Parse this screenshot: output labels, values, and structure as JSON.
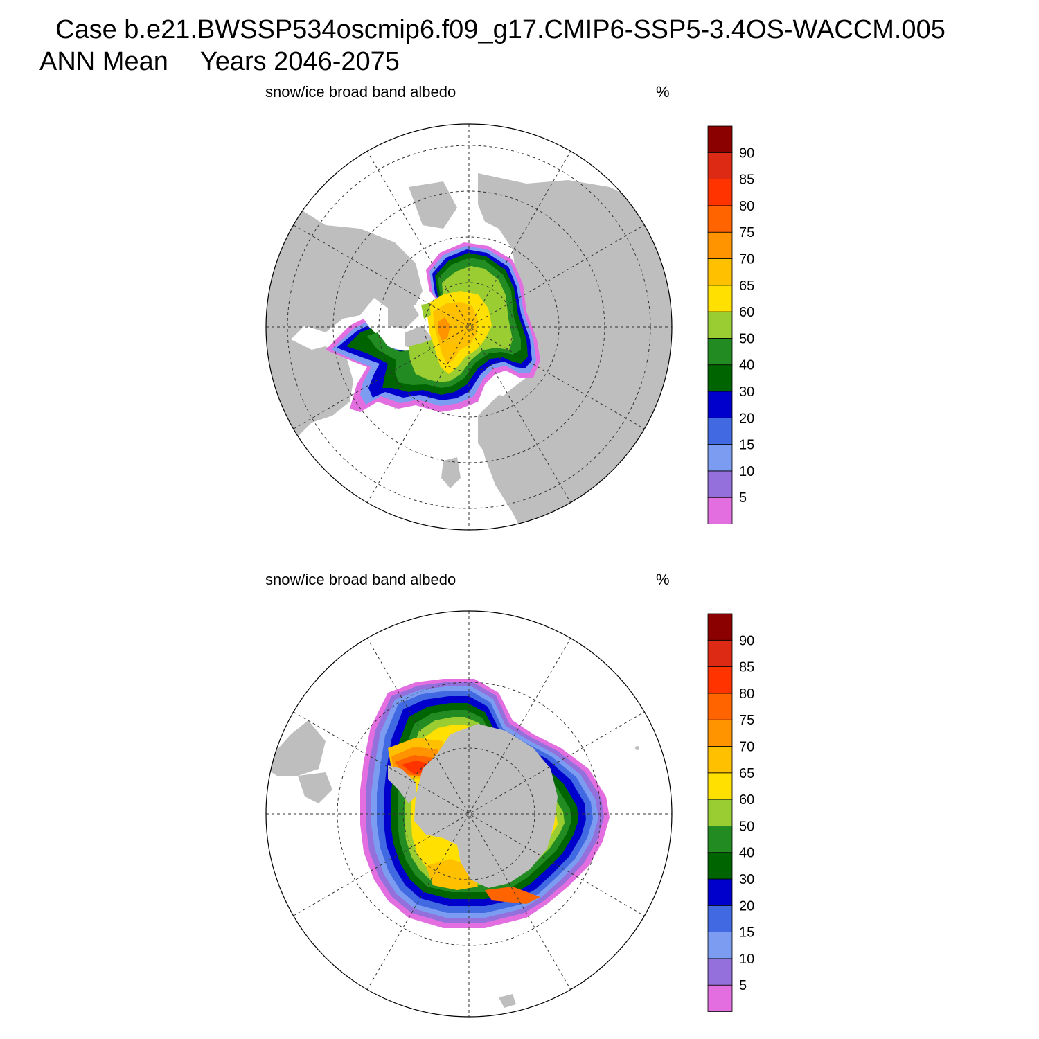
{
  "header": {
    "case_title": "Case b.e21.BWSSP534oscmip6.f09_g17.CMIP6-SSP5-3.4OS-WACCM.005",
    "season": "ANN Mean",
    "years": "Years 2046-2075"
  },
  "colors": {
    "land": "#bebebe",
    "background": "#ffffff"
  },
  "colorbar": {
    "labels": [
      "5",
      "10",
      "15",
      "20",
      "30",
      "40",
      "50",
      "60",
      "65",
      "70",
      "75",
      "80",
      "85",
      "90"
    ],
    "colors": [
      "#e36ee0",
      "#9370db",
      "#7b9cf0",
      "#4169e1",
      "#0000cd",
      "#006400",
      "#228b22",
      "#9acd32",
      "#ffe000",
      "#ffc000",
      "#ff9400",
      "#ff6400",
      "#ff3300",
      "#dc2a14",
      "#8b0000"
    ]
  },
  "panels": [
    {
      "name": "north",
      "title": "snow/ice broad band albedo",
      "units": "%"
    },
    {
      "name": "south",
      "title": "snow/ice broad band albedo",
      "units": "%"
    }
  ]
}
